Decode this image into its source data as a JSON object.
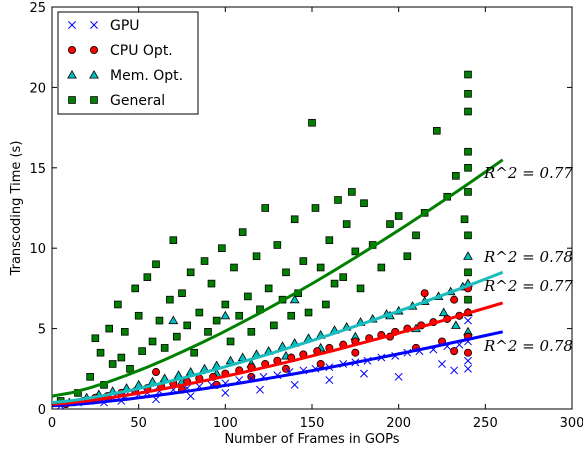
{
  "chart_data": {
    "type": "scatter",
    "xlabel": "Number of Frames in GOPs",
    "ylabel": "Transcoding Time (s)",
    "xlim": [
      0,
      300
    ],
    "ylim": [
      0,
      25
    ],
    "xticks": [
      "0",
      "50",
      "100",
      "150",
      "200",
      "250",
      "300"
    ],
    "yticks": [
      "0",
      "5",
      "10",
      "15",
      "20",
      "25"
    ],
    "grid": false,
    "legend_position": "top-left",
    "series": [
      {
        "name": "GPU",
        "marker": "x",
        "color": "#0000ff",
        "fit_color": "#0000ff",
        "r2_label": "R^2 = 0.78",
        "fit": {
          "x0": 0,
          "y0": 0.2,
          "x1": 260,
          "y1": 4.8
        },
        "points": [
          [
            5,
            0.2
          ],
          [
            15,
            0.4
          ],
          [
            22,
            0.5
          ],
          [
            28,
            0.6
          ],
          [
            35,
            0.7
          ],
          [
            42,
            0.8
          ],
          [
            50,
            0.9
          ],
          [
            55,
            1.0
          ],
          [
            62,
            1.1
          ],
          [
            70,
            1.2
          ],
          [
            78,
            1.3
          ],
          [
            85,
            1.4
          ],
          [
            92,
            1.5
          ],
          [
            100,
            1.6
          ],
          [
            108,
            1.8
          ],
          [
            115,
            1.9
          ],
          [
            122,
            2.0
          ],
          [
            130,
            2.1
          ],
          [
            137,
            2.3
          ],
          [
            145,
            2.4
          ],
          [
            152,
            2.5
          ],
          [
            160,
            2.6
          ],
          [
            168,
            2.8
          ],
          [
            175,
            2.9
          ],
          [
            182,
            3.0
          ],
          [
            190,
            3.2
          ],
          [
            198,
            3.3
          ],
          [
            205,
            3.5
          ],
          [
            212,
            3.6
          ],
          [
            220,
            3.7
          ],
          [
            228,
            3.9
          ],
          [
            235,
            4.0
          ],
          [
            240,
            4.2
          ],
          [
            240,
            3.0
          ],
          [
            240,
            2.5
          ],
          [
            240,
            5.5
          ],
          [
            232,
            2.4
          ],
          [
            225,
            2.8
          ],
          [
            200,
            2.0
          ],
          [
            180,
            2.2
          ],
          [
            160,
            1.8
          ],
          [
            140,
            1.5
          ],
          [
            120,
            1.2
          ],
          [
            100,
            1.0
          ],
          [
            80,
            0.8
          ],
          [
            60,
            0.6
          ],
          [
            40,
            0.5
          ],
          [
            30,
            0.4
          ]
        ]
      },
      {
        "name": "CPU Opt.",
        "marker": "o",
        "color": "#ff0000",
        "fit_color": "#ff0000",
        "r2_label": "R^2 = 0.77",
        "fit": {
          "x0": 0,
          "y0": 0.3,
          "x1": 260,
          "y1": 6.6
        },
        "points": [
          [
            8,
            0.3
          ],
          [
            18,
            0.5
          ],
          [
            25,
            0.7
          ],
          [
            32,
            0.8
          ],
          [
            40,
            1.0
          ],
          [
            48,
            1.1
          ],
          [
            55,
            1.3
          ],
          [
            63,
            1.4
          ],
          [
            70,
            1.6
          ],
          [
            78,
            1.7
          ],
          [
            85,
            1.9
          ],
          [
            93,
            2.0
          ],
          [
            100,
            2.2
          ],
          [
            108,
            2.4
          ],
          [
            115,
            2.6
          ],
          [
            123,
            2.8
          ],
          [
            130,
            3.0
          ],
          [
            138,
            3.2
          ],
          [
            145,
            3.4
          ],
          [
            153,
            3.6
          ],
          [
            160,
            3.8
          ],
          [
            168,
            4.0
          ],
          [
            175,
            4.2
          ],
          [
            183,
            4.4
          ],
          [
            190,
            4.6
          ],
          [
            198,
            4.8
          ],
          [
            205,
            5.0
          ],
          [
            213,
            5.2
          ],
          [
            220,
            5.4
          ],
          [
            228,
            5.6
          ],
          [
            235,
            5.8
          ],
          [
            240,
            6.0
          ],
          [
            240,
            4.5
          ],
          [
            240,
            3.5
          ],
          [
            240,
            7.5
          ],
          [
            232,
            3.6
          ],
          [
            225,
            4.2
          ],
          [
            210,
            3.8
          ],
          [
            195,
            4.5
          ],
          [
            175,
            3.5
          ],
          [
            155,
            2.8
          ],
          [
            135,
            2.5
          ],
          [
            115,
            2.0
          ],
          [
            95,
            1.5
          ],
          [
            75,
            1.2
          ],
          [
            215,
            7.2
          ],
          [
            232,
            6.8
          ],
          [
            60,
            2.3
          ]
        ]
      },
      {
        "name": "Mem. Opt.",
        "marker": "^",
        "color": "#00bfbf",
        "fit_color": "#1abcbe",
        "r2_label": "R^2 = 0.78",
        "fit": {
          "x0": 0,
          "y0": 0.4,
          "x1": 260,
          "y1": 8.5
        },
        "points": [
          [
            10,
            0.4
          ],
          [
            20,
            0.7
          ],
          [
            27,
            0.9
          ],
          [
            35,
            1.1
          ],
          [
            43,
            1.3
          ],
          [
            50,
            1.5
          ],
          [
            58,
            1.7
          ],
          [
            65,
            1.9
          ],
          [
            73,
            2.1
          ],
          [
            80,
            2.3
          ],
          [
            88,
            2.5
          ],
          [
            95,
            2.7
          ],
          [
            103,
            3.0
          ],
          [
            110,
            3.2
          ],
          [
            118,
            3.4
          ],
          [
            125,
            3.6
          ],
          [
            133,
            3.9
          ],
          [
            140,
            4.1
          ],
          [
            148,
            4.4
          ],
          [
            155,
            4.6
          ],
          [
            163,
            4.9
          ],
          [
            170,
            5.1
          ],
          [
            178,
            5.4
          ],
          [
            185,
            5.6
          ],
          [
            193,
            5.9
          ],
          [
            200,
            6.1
          ],
          [
            208,
            6.4
          ],
          [
            215,
            6.7
          ],
          [
            223,
            7.0
          ],
          [
            230,
            7.3
          ],
          [
            237,
            7.6
          ],
          [
            240,
            7.8
          ],
          [
            240,
            6.0
          ],
          [
            240,
            4.8
          ],
          [
            240,
            9.5
          ],
          [
            233,
            5.2
          ],
          [
            226,
            6.0
          ],
          [
            210,
            5.0
          ],
          [
            195,
            5.8
          ],
          [
            175,
            4.5
          ],
          [
            155,
            3.8
          ],
          [
            135,
            3.3
          ],
          [
            115,
            2.8
          ],
          [
            95,
            2.2
          ],
          [
            75,
            1.7
          ],
          [
            70,
            5.5
          ],
          [
            100,
            5.8
          ],
          [
            140,
            6.8
          ]
        ]
      },
      {
        "name": "General",
        "marker": "s",
        "color": "#008000",
        "fit_color": "#008000",
        "r2_label": "R^2 = 0.77",
        "fit": {
          "x0": 0,
          "y0": 0.8,
          "x1": 260,
          "y1": 15.5
        },
        "points": [
          [
            5,
            0.5
          ],
          [
            15,
            1.0
          ],
          [
            22,
            2.0
          ],
          [
            25,
            4.4
          ],
          [
            28,
            3.5
          ],
          [
            30,
            1.5
          ],
          [
            33,
            5.0
          ],
          [
            35,
            2.8
          ],
          [
            38,
            6.5
          ],
          [
            40,
            3.2
          ],
          [
            42,
            4.8
          ],
          [
            45,
            2.5
          ],
          [
            48,
            7.5
          ],
          [
            50,
            5.8
          ],
          [
            52,
            3.6
          ],
          [
            55,
            8.2
          ],
          [
            58,
            4.2
          ],
          [
            60,
            9.0
          ],
          [
            62,
            5.5
          ],
          [
            65,
            3.8
          ],
          [
            68,
            6.8
          ],
          [
            70,
            10.5
          ],
          [
            72,
            4.5
          ],
          [
            75,
            7.2
          ],
          [
            78,
            5.2
          ],
          [
            80,
            8.5
          ],
          [
            82,
            3.5
          ],
          [
            85,
            6.0
          ],
          [
            88,
            9.2
          ],
          [
            90,
            4.8
          ],
          [
            92,
            7.8
          ],
          [
            95,
            5.5
          ],
          [
            98,
            10.0
          ],
          [
            100,
            6.5
          ],
          [
            103,
            4.2
          ],
          [
            105,
            8.8
          ],
          [
            108,
            5.8
          ],
          [
            110,
            11.0
          ],
          [
            113,
            7.0
          ],
          [
            115,
            4.8
          ],
          [
            118,
            9.5
          ],
          [
            120,
            6.2
          ],
          [
            123,
            12.5
          ],
          [
            125,
            7.5
          ],
          [
            128,
            5.2
          ],
          [
            130,
            10.2
          ],
          [
            133,
            6.8
          ],
          [
            135,
            8.5
          ],
          [
            138,
            5.8
          ],
          [
            140,
            11.8
          ],
          [
            142,
            7.2
          ],
          [
            145,
            9.2
          ],
          [
            148,
            6.0
          ],
          [
            150,
            17.8
          ],
          [
            152,
            12.5
          ],
          [
            155,
            8.8
          ],
          [
            158,
            6.5
          ],
          [
            160,
            10.5
          ],
          [
            163,
            7.8
          ],
          [
            165,
            13.0
          ],
          [
            168,
            8.2
          ],
          [
            170,
            11.5
          ],
          [
            173,
            13.5
          ],
          [
            175,
            9.8
          ],
          [
            178,
            7.5
          ],
          [
            180,
            12.8
          ],
          [
            185,
            10.2
          ],
          [
            190,
            8.8
          ],
          [
            195,
            11.5
          ],
          [
            200,
            12.0
          ],
          [
            205,
            9.5
          ],
          [
            210,
            10.8
          ],
          [
            215,
            12.2
          ],
          [
            222,
            17.3
          ],
          [
            228,
            13.2
          ],
          [
            233,
            14.5
          ],
          [
            238,
            11.8
          ],
          [
            240,
            20.8
          ],
          [
            240,
            18.5
          ],
          [
            240,
            16.0
          ],
          [
            240,
            13.5
          ],
          [
            240,
            10.8
          ],
          [
            240,
            8.5
          ],
          [
            240,
            6.8
          ],
          [
            240,
            19.6
          ],
          [
            240,
            15.0
          ]
        ]
      }
    ]
  }
}
